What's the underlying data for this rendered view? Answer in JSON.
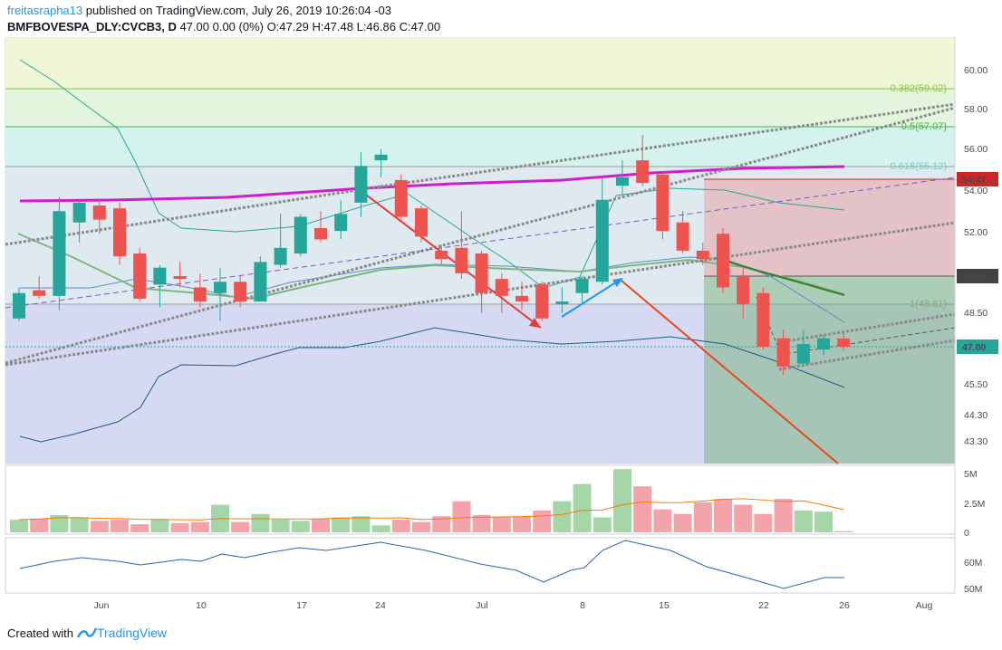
{
  "header": {
    "user": "freitasrapha13",
    "published": " published on TradingView.com, July 26, 2019 10:26:04 -03",
    "symbol": "BMFBOVESPA_DLY:CVCB3, D",
    "ohlc": " 47.00 0.00 (0%) O:47.29 H:47.48 L:46.86 C:47.00"
  },
  "footer": {
    "created": "Created with",
    "brand": "TradingView"
  },
  "colors": {
    "up": "#26a69a",
    "down": "#ef5350",
    "volume_up": "#a5d6a7",
    "volume_down": "#f4a3ab"
  },
  "chart_data": {
    "type": "candlestick",
    "price_ticks": [
      "60.00",
      "58.00",
      "56.00",
      "54.00",
      "52.00",
      "50.01",
      "48.50",
      "47.00",
      "45.50",
      "44.30",
      "43.30"
    ],
    "price_labels": {
      "current": "47.00",
      "level_a": "54.47",
      "level_b": "50.01"
    },
    "fib_labels": [
      "0.382(59.02)",
      "0.5(57.07)",
      "0.618(55.12)",
      "1(48.81)"
    ],
    "x_labels": [
      "Jun",
      "10",
      "17",
      "24",
      "Jul",
      "8",
      "15",
      "22",
      "26",
      "Aug"
    ],
    "volume_ticks": [
      "5M",
      "2.5M",
      "0"
    ],
    "rsi_ticks": [
      "60M",
      "50M"
    ],
    "candles": [
      [
        48.0,
        48.9,
        49.1,
        47.9
      ],
      [
        49.0,
        48.8,
        49.5,
        48.7
      ],
      [
        48.8,
        51.8,
        52.3,
        48.3
      ],
      [
        51.4,
        52.1,
        52.2,
        50.7
      ],
      [
        52.0,
        51.5,
        52.2,
        51.0
      ],
      [
        51.9,
        50.2,
        52.1,
        49.9
      ],
      [
        50.3,
        48.7,
        50.5,
        48.6
      ],
      [
        49.2,
        49.8,
        49.9,
        48.4
      ],
      [
        49.5,
        49.4,
        50.0,
        49.1
      ],
      [
        49.1,
        48.6,
        49.6,
        48.4
      ],
      [
        48.9,
        49.3,
        49.8,
        47.9
      ],
      [
        49.3,
        48.6,
        49.5,
        48.4
      ],
      [
        48.6,
        50.0,
        50.2,
        48.6
      ],
      [
        49.9,
        50.5,
        51.7,
        49.8
      ],
      [
        50.3,
        51.6,
        51.7,
        50.2
      ],
      [
        51.2,
        50.8,
        51.8,
        50.7
      ],
      [
        51.1,
        51.7,
        52.2,
        50.8
      ],
      [
        52.1,
        53.4,
        53.9,
        51.6
      ],
      [
        53.6,
        53.8,
        54.0,
        53.0
      ],
      [
        52.9,
        51.6,
        53.1,
        51.4
      ],
      [
        51.9,
        50.9,
        52.0,
        50.7
      ],
      [
        50.4,
        50.1,
        50.6,
        49.9
      ],
      [
        50.5,
        49.6,
        51.8,
        49.4
      ],
      [
        50.3,
        48.9,
        50.4,
        48.2
      ],
      [
        49.4,
        48.8,
        49.6,
        48.2
      ],
      [
        48.8,
        48.6,
        49.3,
        48.3
      ],
      [
        49.2,
        48.0,
        49.3,
        47.9
      ],
      [
        48.5,
        48.6,
        49.1,
        48.2
      ],
      [
        48.9,
        49.4,
        49.5,
        48.5
      ],
      [
        49.3,
        52.2,
        53.0,
        49.2
      ],
      [
        52.7,
        53.0,
        53.6,
        52.4
      ],
      [
        53.6,
        52.8,
        54.5,
        52.7
      ],
      [
        53.1,
        51.1,
        53.2,
        50.8
      ],
      [
        51.4,
        50.4,
        51.8,
        50.3
      ],
      [
        50.4,
        50.1,
        50.7,
        49.9
      ],
      [
        51.0,
        49.1,
        51.2,
        48.9
      ],
      [
        49.5,
        48.5,
        49.8,
        48.0
      ],
      [
        48.9,
        47.0,
        49.1,
        46.9
      ],
      [
        47.3,
        46.3,
        47.6,
        46.0
      ],
      [
        46.4,
        47.1,
        47.6,
        46.3
      ],
      [
        46.9,
        47.3,
        47.4,
        46.7
      ],
      [
        47.29,
        47.0,
        47.48,
        46.86
      ]
    ],
    "volume_m": [
      1.1,
      1.2,
      1.5,
      1.3,
      1.0,
      1.1,
      0.7,
      1.1,
      0.8,
      0.9,
      2.4,
      0.9,
      1.6,
      1.1,
      1.0,
      1.2,
      1.3,
      1.4,
      0.6,
      1.1,
      0.9,
      1.4,
      2.7,
      1.5,
      1.3,
      1.4,
      1.9,
      2.7,
      4.2,
      1.3,
      5.5,
      4.0,
      2.0,
      1.6,
      2.6,
      2.9,
      2.4,
      1.6,
      2.9,
      1.9,
      1.8,
      0.1
    ]
  }
}
